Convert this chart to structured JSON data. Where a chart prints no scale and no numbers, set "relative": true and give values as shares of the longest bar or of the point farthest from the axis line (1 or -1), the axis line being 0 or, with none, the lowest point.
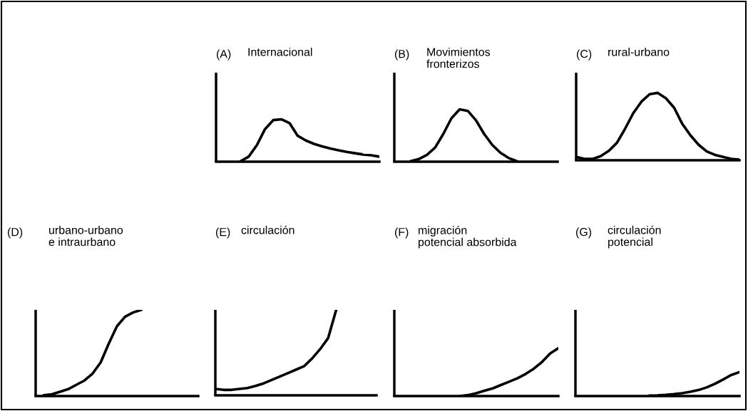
{
  "chart_data": [
    {
      "type": "line",
      "relative": true,
      "tick_labels": false,
      "title": "(A)",
      "subtitle": "Internacional",
      "categories": [
        null,
        null,
        null,
        null,
        null,
        null,
        null,
        null,
        null,
        null,
        null,
        null,
        null,
        null,
        null,
        null,
        null,
        null,
        null,
        null,
        null
      ],
      "series": [
        {
          "color": "#000000",
          "values": [
            null,
            null,
            null,
            0.01,
            0.12,
            0.39,
            0.77,
            0.98,
            1,
            0.91,
            0.61,
            0.5,
            0.42,
            0.36,
            0.31,
            0.27,
            0.23,
            0.2,
            0.17,
            0.15,
            0.12
          ]
        }
      ]
    },
    {
      "type": "line",
      "relative": true,
      "tick_labels": false,
      "title": "(B)",
      "subtitle": "Movimientos\nfronterizos",
      "categories": [
        null,
        null,
        null,
        null,
        null,
        null,
        null,
        null,
        null,
        null,
        null,
        null,
        null,
        null,
        null,
        null,
        null,
        null,
        null,
        null,
        null
      ],
      "series": [
        {
          "color": "#000000",
          "values": [
            null,
            null,
            0.01,
            0.05,
            0.13,
            0.27,
            0.53,
            0.83,
            1,
            0.97,
            0.79,
            0.53,
            0.32,
            0.17,
            0.07,
            0.01,
            null,
            null,
            null,
            null,
            null
          ]
        }
      ]
    },
    {
      "type": "line",
      "relative": true,
      "tick_labels": false,
      "title": "(C)",
      "subtitle": "rural-urbano",
      "categories": [
        null,
        null,
        null,
        null,
        null,
        null,
        null,
        null,
        null,
        null,
        null,
        null,
        null,
        null,
        null,
        null,
        null,
        null,
        null,
        null,
        null
      ],
      "series": [
        {
          "color": "#000000",
          "values": [
            0.05,
            0.02,
            0.02,
            0.06,
            0.14,
            0.26,
            0.47,
            0.7,
            0.87,
            0.98,
            1,
            0.92,
            0.78,
            0.54,
            0.37,
            0.23,
            0.13,
            0.08,
            0.05,
            0.02,
            0.01
          ]
        }
      ]
    },
    {
      "type": "line",
      "relative": true,
      "tick_labels": false,
      "title": "(D)",
      "subtitle": "urbano-urbano\ne intraurbano",
      "categories": [
        null,
        null,
        null,
        null,
        null,
        null,
        null,
        null,
        null,
        null,
        null,
        null,
        null,
        null,
        null,
        null,
        null,
        null,
        null,
        null,
        null
      ],
      "series": [
        {
          "color": "#000000",
          "values": [
            null,
            0.01,
            0.02,
            0.05,
            0.08,
            0.13,
            0.18,
            0.26,
            0.39,
            0.61,
            0.81,
            0.92,
            0.97,
            1,
            null,
            null,
            null,
            null,
            null,
            null,
            null
          ]
        }
      ]
    },
    {
      "type": "line",
      "relative": true,
      "tick_labels": false,
      "title": "(E)",
      "subtitle": "circulación",
      "categories": [
        null,
        null,
        null,
        null,
        null,
        null,
        null,
        null,
        null,
        null,
        null,
        null,
        null,
        null,
        null,
        null,
        null,
        null,
        null,
        null,
        null
      ],
      "series": [
        {
          "color": "#000000",
          "values": [
            0.075,
            0.064,
            0.064,
            0.075,
            0.086,
            0.11,
            0.14,
            0.18,
            0.22,
            0.26,
            0.3,
            0.34,
            0.43,
            0.54,
            0.67,
            1,
            null,
            null,
            null,
            null,
            null
          ]
        }
      ]
    },
    {
      "type": "line",
      "relative": true,
      "tick_labels": false,
      "title": "(F)",
      "subtitle": "migración\npotencial absorbida",
      "categories": [
        null,
        null,
        null,
        null,
        null,
        null,
        null,
        null,
        null,
        null,
        null,
        null,
        null,
        null,
        null,
        null,
        null,
        null,
        null,
        null,
        null
      ],
      "series": [
        {
          "color": "#000000",
          "values": [
            null,
            null,
            null,
            null,
            null,
            null,
            null,
            null,
            0,
            0.02,
            0.06,
            0.11,
            0.16,
            0.23,
            0.3,
            0.37,
            0.46,
            0.57,
            0.71,
            0.89,
            1
          ]
        }
      ]
    },
    {
      "type": "line",
      "relative": true,
      "tick_labels": false,
      "title": "(G)",
      "subtitle": "circulación\npotencial",
      "categories": [
        null,
        null,
        null,
        null,
        null,
        null,
        null,
        null,
        null,
        null,
        null,
        null,
        null,
        null,
        null,
        null,
        null,
        null,
        null,
        null,
        null
      ],
      "series": [
        {
          "color": "#000000",
          "values": [
            null,
            null,
            null,
            null,
            null,
            null,
            null,
            null,
            null,
            0.02,
            0.03,
            0.05,
            0.08,
            0.12,
            0.18,
            0.25,
            0.36,
            0.51,
            0.69,
            0.88,
            1
          ]
        }
      ]
    }
  ]
}
